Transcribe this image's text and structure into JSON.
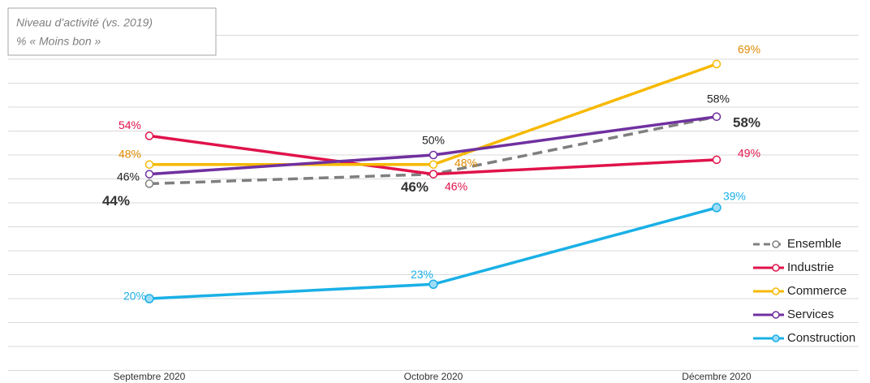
{
  "chart_data": {
    "type": "line",
    "title": "Niveau d’activité (vs. 2019)",
    "subtitle": "% « Moins bon »",
    "categories": [
      "Septembre 2020",
      "Octobre 2020",
      "Décembre 2020"
    ],
    "ylim": [
      4,
      77
    ],
    "yticks": [
      5,
      10,
      15,
      20,
      25,
      30,
      35,
      40,
      45,
      50,
      55,
      60,
      65,
      70,
      75
    ],
    "grid": true,
    "legend": "right",
    "series": [
      {
        "name": "Ensemble",
        "color": "#7f7f7f",
        "dashed": true,
        "values": [
          44,
          46,
          58
        ],
        "value_labels": [
          "44%",
          "46%",
          "58%"
        ]
      },
      {
        "name": "Industrie",
        "color": "#e0134b",
        "values": [
          54,
          46,
          49
        ],
        "value_labels": [
          "54%",
          "46%",
          "49%"
        ]
      },
      {
        "name": "Commerce",
        "color": "#f6b900",
        "values": [
          48,
          48,
          69
        ],
        "value_labels": [
          "48%",
          "48%",
          "69%"
        ]
      },
      {
        "name": "Services",
        "color": "#7030a0",
        "values": [
          46,
          50,
          58
        ],
        "value_labels": [
          "46%",
          "50%",
          "58%"
        ]
      },
      {
        "name": "Construction",
        "color": "#1ab0e6",
        "values": [
          20,
          23,
          39
        ],
        "value_labels": [
          "20%",
          "23%",
          "39%"
        ]
      }
    ]
  }
}
